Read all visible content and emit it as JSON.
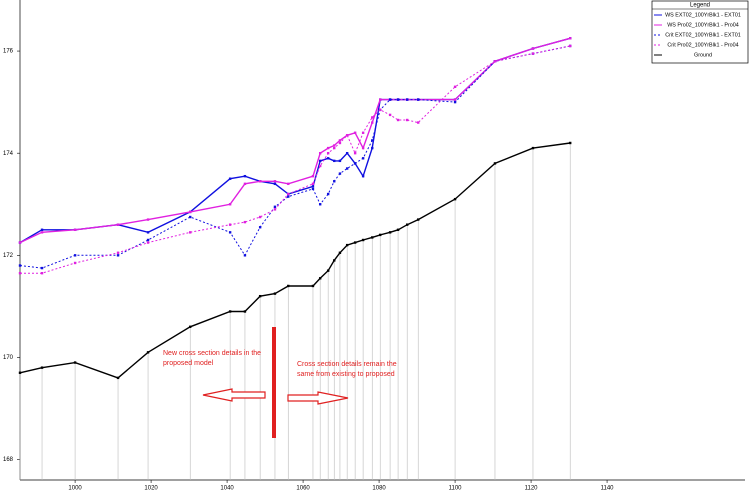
{
  "chart_data": {
    "type": "line",
    "x": [
      985.5,
      991.3,
      1000,
      1011.3,
      1019.2,
      1030.3,
      1040.8,
      1044.7,
      1048.7,
      1052.6,
      1056.1,
      1062.6,
      1064.5,
      1066.6,
      1068.2,
      1069.7,
      1071.6,
      1073.7,
      1075.8,
      1078.2,
      1080.3,
      1082.9,
      1085,
      1087.4,
      1090.3,
      1100,
      1110.5,
      1120.5,
      1130.3
    ],
    "series": [
      {
        "name": "WS EXT02_100YrBlk1 - EXT01",
        "color": "#1010e0",
        "style": "solid",
        "values": [
          172.25,
          172.5,
          172.5,
          172.6,
          172.45,
          172.85,
          173.5,
          173.55,
          173.45,
          173.4,
          173.2,
          173.35,
          173.85,
          173.9,
          173.85,
          173.85,
          174.0,
          173.8,
          173.55,
          174.1,
          175.05,
          175.05,
          175.05,
          175.05,
          175.05,
          175.05,
          175.8,
          176.05,
          176.25
        ]
      },
      {
        "name": "WS Pro02_100YrBlk1 - Pro04",
        "color": "#e020e0",
        "style": "solid",
        "values": [
          172.25,
          172.45,
          172.5,
          172.6,
          172.7,
          172.85,
          173.0,
          173.4,
          173.45,
          173.45,
          173.4,
          173.55,
          174.0,
          174.1,
          174.15,
          174.25,
          174.35,
          174.4,
          174.1,
          174.6,
          175.05,
          175.05,
          175.05,
          175.05,
          175.05,
          175.05,
          175.8,
          176.05,
          176.25
        ]
      },
      {
        "name": "Crit EXT02_100YrBlk1 - EXT01",
        "color": "#1010e0",
        "style": "dotted",
        "values": [
          171.8,
          171.75,
          172.0,
          172.0,
          172.3,
          172.75,
          172.45,
          172.0,
          172.55,
          172.95,
          173.15,
          173.3,
          173.0,
          173.2,
          173.45,
          173.6,
          173.7,
          173.8,
          173.9,
          174.25,
          174.85,
          175.05,
          175.05,
          175.05,
          175.05,
          175.0,
          175.8,
          175.95,
          176.1
        ]
      },
      {
        "name": "Crit Pro02_100YrBlk1 - Pro04",
        "color": "#e020e0",
        "style": "dotted",
        "values": [
          171.65,
          171.65,
          171.85,
          172.05,
          172.25,
          172.45,
          172.6,
          172.65,
          172.75,
          172.9,
          173.2,
          173.4,
          173.75,
          174.0,
          174.1,
          174.2,
          174.35,
          174.0,
          174.4,
          174.7,
          174.85,
          174.75,
          174.65,
          174.65,
          174.6,
          175.3,
          175.8,
          175.95,
          176.1
        ]
      },
      {
        "name": "Ground",
        "color": "#000000",
        "style": "solid",
        "values": [
          169.7,
          169.8,
          169.9,
          169.6,
          170.1,
          170.6,
          170.9,
          170.9,
          171.2,
          171.25,
          171.4,
          171.4,
          171.55,
          171.7,
          171.9,
          172.05,
          172.2,
          172.25,
          172.3,
          172.35,
          172.4,
          172.45,
          172.5,
          172.6,
          172.7,
          173.1,
          173.8,
          174.1,
          174.2
        ]
      }
    ],
    "xlim": [
      985.5,
      1176.3
    ],
    "xticks": [
      1000,
      1020,
      1040,
      1060,
      1080,
      1100,
      1120,
      1140
    ],
    "ylim": [
      167.6,
      177.0
    ],
    "yticks": [
      168,
      170,
      172,
      174,
      176
    ],
    "legend_title": "Legend",
    "legend_position": "upper right",
    "annotations": [
      "New cross section details in the proposed model",
      "Cross section details remain the same from existing to proposed"
    ]
  }
}
